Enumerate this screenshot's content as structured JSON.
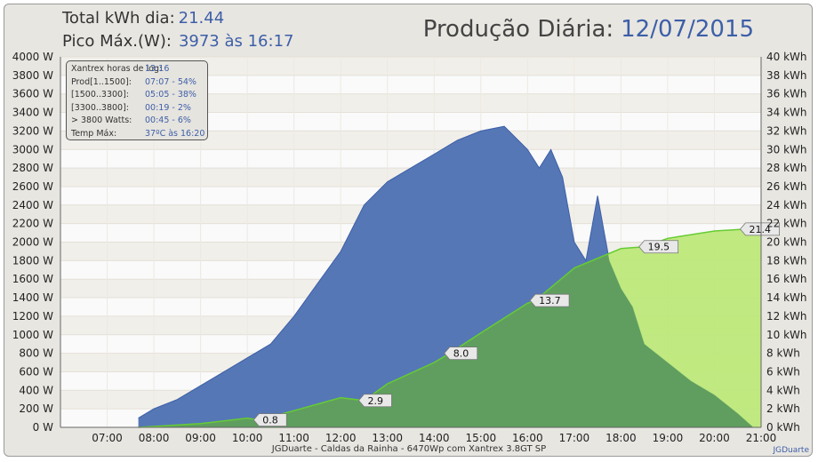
{
  "header": {
    "kwh_label": "Total kWh dia:",
    "kwh_value": "21.44",
    "peak_label": "Pico Máx.(W):",
    "peak_value": "3973 às 16:17",
    "title": "Produção Diária:",
    "date": "12/07/2015"
  },
  "legend": [
    {
      "key": "Xantrex horas de log:",
      "value": "13:16"
    },
    {
      "key": "Prod[1..1500]:",
      "value": "07:07 - 54%"
    },
    {
      "key": "[1500..3300]:",
      "value": "05:05 - 38%"
    },
    {
      "key": "[3300..3800]:",
      "value": "00:19 - 2%"
    },
    {
      "key": "> 3800 Watts:",
      "value": "00:45 - 6%"
    },
    {
      "key": "Temp Máx:",
      "value": "37ºC às 16:20"
    }
  ],
  "footer": "JGDuarte  -  Caldas da Rainha  -  6470Wp com Xantrex 3.8GT SP",
  "credit": "JGDuarte",
  "colors": {
    "power": "#5577b6",
    "power_line": "#3d5fa8",
    "energy": "#bde87a",
    "energy_line": "#66cc33",
    "overlap": "#5f9e5f"
  },
  "chart_data": {
    "type": "area",
    "x_range": [
      "06:00",
      "21:00"
    ],
    "x_ticks": [
      "07:00",
      "08:00",
      "09:00",
      "10:00",
      "11:00",
      "12:00",
      "13:00",
      "14:00",
      "15:00",
      "16:00",
      "17:00",
      "18:00",
      "19:00",
      "20:00",
      "21:00"
    ],
    "left_axis": {
      "range": [
        0,
        4000
      ],
      "ticks": [
        "0 W",
        "200 W",
        "400 W",
        "600 W",
        "800 W",
        "1000 W",
        "1200 W",
        "1400 W",
        "1600 W",
        "1800 W",
        "2000 W",
        "2200 W",
        "2400 W",
        "2600 W",
        "2800 W",
        "3000 W",
        "3200 W",
        "3400 W",
        "3600 W",
        "3800 W",
        "4000 W"
      ]
    },
    "right_axis": {
      "range": [
        0,
        40
      ],
      "ticks": [
        "0 kWh",
        "2 kWh",
        "4 kWh",
        "6 kWh",
        "8 kWh",
        "10 kWh",
        "12 kWh",
        "14 kWh",
        "16 kWh",
        "18 kWh",
        "20 kWh",
        "22 kWh",
        "24 kWh",
        "26 kWh",
        "28 kWh",
        "30 kWh",
        "32 kWh",
        "34 kWh",
        "36 kWh",
        "38 kWh",
        "40 kWh"
      ]
    },
    "series": [
      {
        "axis": "left",
        "x": [
          "07:40",
          "08:00",
          "08:30",
          "09:00",
          "09:30",
          "10:00",
          "10:30",
          "11:00",
          "11:30",
          "12:00",
          "12:30",
          "13:00",
          "13:30",
          "14:00",
          "14:30",
          "15:00",
          "15:30",
          "16:00",
          "16:15",
          "16:30",
          "16:45",
          "17:00",
          "17:15",
          "17:30",
          "17:45",
          "18:00",
          "18:15",
          "18:30",
          "18:45",
          "19:00",
          "19:30",
          "20:00",
          "20:30",
          "20:50"
        ],
        "y": [
          100,
          200,
          300,
          450,
          600,
          750,
          900,
          1200,
          1550,
          1900,
          2400,
          2650,
          2800,
          2950,
          3100,
          3200,
          3250,
          3000,
          2800,
          3000,
          2700,
          2000,
          1800,
          2500,
          1800,
          1500,
          1300,
          900,
          800,
          700,
          500,
          350,
          150,
          0
        ]
      },
      {
        "axis": "right",
        "x": [
          "07:40",
          "08:00",
          "09:00",
          "10:00",
          "10:15",
          "11:00",
          "12:00",
          "12:30",
          "13:00",
          "14:00",
          "14:20",
          "15:00",
          "16:00",
          "16:10",
          "17:00",
          "18:00",
          "18:30",
          "19:00",
          "20:00",
          "20:40",
          "21:00"
        ],
        "y": [
          0,
          0.1,
          0.4,
          1.0,
          0.8,
          1.8,
          3.2,
          2.9,
          4.7,
          7.0,
          8.0,
          10.2,
          13.4,
          13.7,
          17.2,
          19.3,
          19.5,
          20.4,
          21.2,
          21.4,
          21.4
        ],
        "labels": [
          {
            "x": "10:15",
            "text": "0.8"
          },
          {
            "x": "12:30",
            "text": "2.9"
          },
          {
            "x": "14:20",
            "text": "8.0"
          },
          {
            "x": "16:10",
            "text": "13.7"
          },
          {
            "x": "18:30",
            "text": "19.5"
          },
          {
            "x": "20:40",
            "text": "21.4"
          }
        ]
      }
    ],
    "grid": true
  }
}
